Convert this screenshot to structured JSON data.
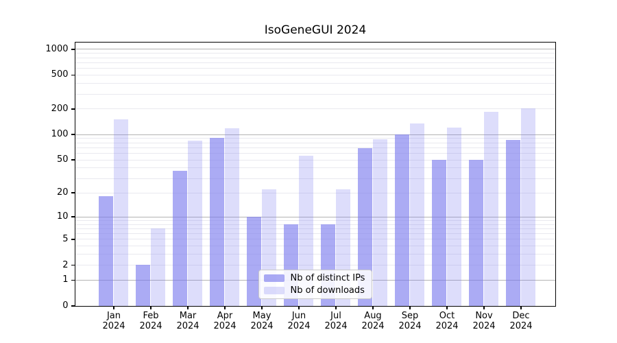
{
  "chart_data": {
    "type": "bar",
    "title": "IsoGeneGUI 2024",
    "categories": [
      {
        "month": "Jan",
        "year": "2024"
      },
      {
        "month": "Feb",
        "year": "2024"
      },
      {
        "month": "Mar",
        "year": "2024"
      },
      {
        "month": "Apr",
        "year": "2024"
      },
      {
        "month": "May",
        "year": "2024"
      },
      {
        "month": "Jun",
        "year": "2024"
      },
      {
        "month": "Jul",
        "year": "2024"
      },
      {
        "month": "Aug",
        "year": "2024"
      },
      {
        "month": "Sep",
        "year": "2024"
      },
      {
        "month": "Oct",
        "year": "2024"
      },
      {
        "month": "Nov",
        "year": "2024"
      },
      {
        "month": "Dec",
        "year": "2024"
      }
    ],
    "series": [
      {
        "name": "Nb of distinct IPs",
        "color": "rgba(119,119,238,0.62)",
        "values": [
          18,
          2,
          37,
          90,
          10,
          8,
          8,
          69,
          100,
          50,
          50,
          85
        ]
      },
      {
        "name": "Nb of downloads",
        "color": "rgba(119,119,238,0.25)",
        "values": [
          150,
          7,
          84,
          117,
          22,
          56,
          22,
          88,
          135,
          120,
          185,
          200
        ]
      }
    ],
    "y_axis": {
      "scale": "log1p",
      "ticks": [
        0,
        1,
        2,
        5,
        10,
        20,
        50,
        100,
        200,
        500,
        1000
      ],
      "range": [
        0,
        1200
      ]
    },
    "grid": {
      "major_values": [
        1,
        10,
        100,
        1000
      ],
      "minor_values": [
        2,
        3,
        4,
        5,
        6,
        7,
        8,
        9,
        20,
        30,
        40,
        50,
        60,
        70,
        80,
        90,
        200,
        300,
        400,
        500,
        600,
        700,
        800,
        900
      ],
      "major_color": "#b3b3b3",
      "minor_color": "#e9e9ef"
    },
    "legend_position": "inside-bottom-center",
    "xlabel": "",
    "ylabel": ""
  }
}
